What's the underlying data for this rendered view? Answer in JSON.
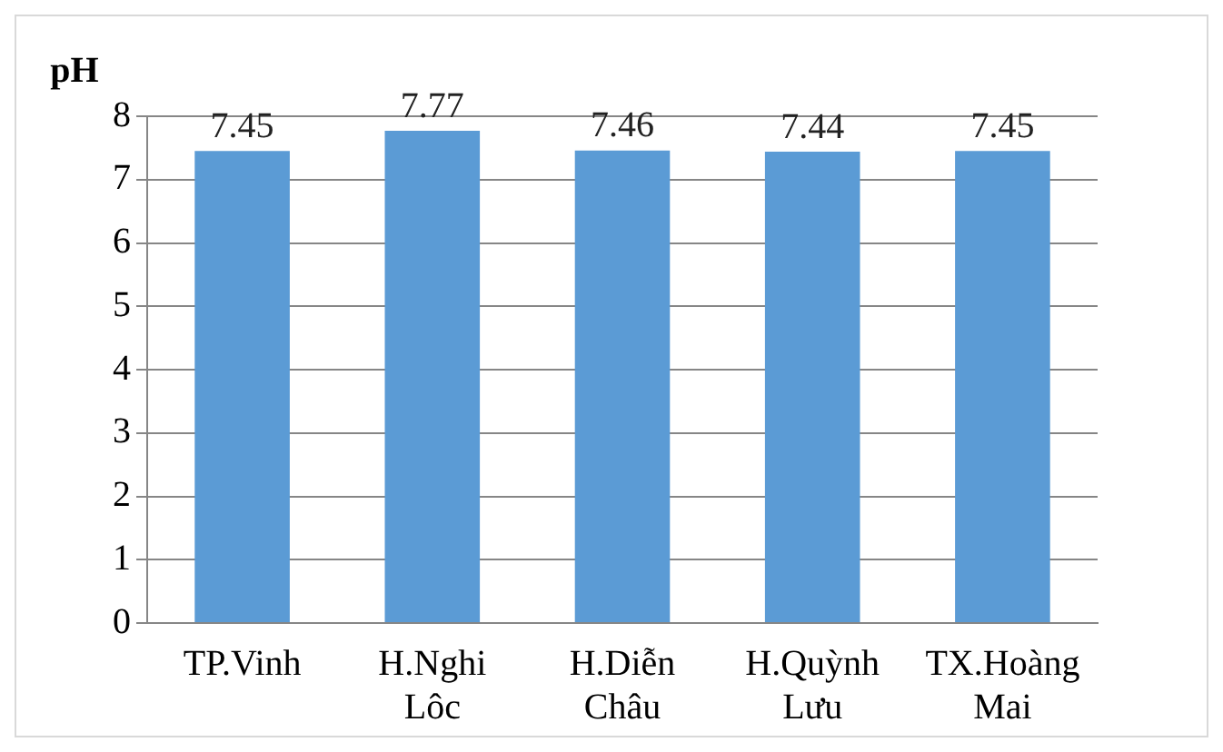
{
  "chart_data": {
    "type": "bar",
    "ylabel": "pH",
    "categories": [
      "TP.Vinh",
      "H.Nghi Lôc",
      "H.Diễn Châu",
      "H.Quỳnh Lưu",
      "TX.Hoàng Mai"
    ],
    "values": [
      7.45,
      7.77,
      7.46,
      7.44,
      7.45
    ],
    "color": "#5b9bd5",
    "ylim": [
      0,
      8
    ],
    "yticks": [
      0,
      1,
      2,
      3,
      4,
      5,
      6,
      7,
      8
    ],
    "grid": "y",
    "data_labels": true,
    "legend": false
  }
}
